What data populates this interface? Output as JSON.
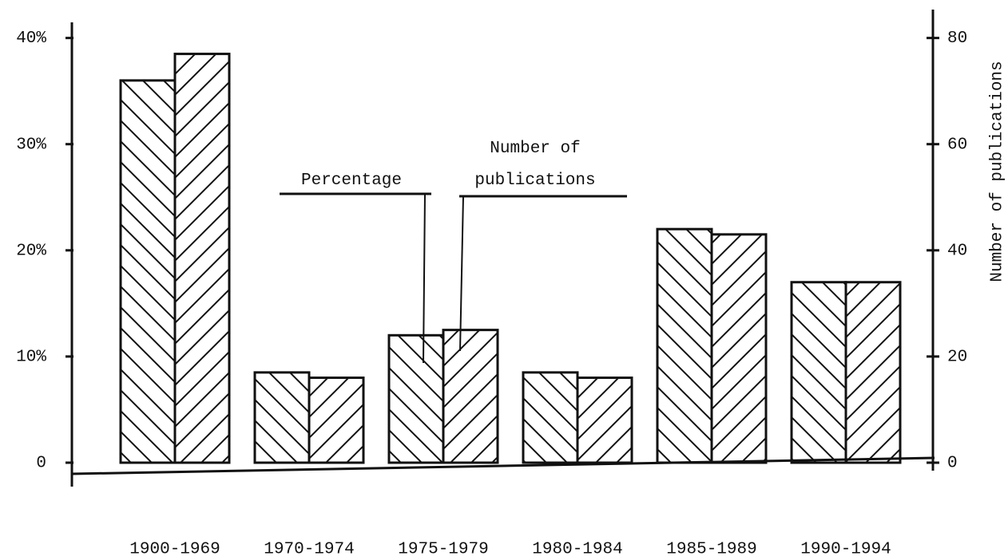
{
  "chart_data": {
    "type": "bar",
    "categories": [
      "1900-1969",
      "1970-1974",
      "1975-1979",
      "1980-1984",
      "1985-1989",
      "1990-1994"
    ],
    "series": [
      {
        "name": "Percentage",
        "color": "#111111",
        "values": [
          36,
          8.5,
          12,
          8.5,
          22,
          17
        ]
      },
      {
        "name": "Number of publications",
        "color": "#111111",
        "axis": "y2",
        "values": [
          77,
          16,
          25,
          16,
          43,
          34
        ]
      }
    ],
    "ylim": [
      0,
      42
    ],
    "yticks": [
      0,
      {
        "value": 10,
        "label": "10%"
      },
      {
        "value": 20,
        "label": "20%"
      },
      {
        "value": 30,
        "label": "30%"
      },
      {
        "value": 40,
        "label": "40%"
      }
    ],
    "y2label": "Number of publications",
    "y2lim": [
      0,
      84
    ],
    "y2ticks": [
      0,
      20,
      40,
      60,
      80
    ]
  }
}
